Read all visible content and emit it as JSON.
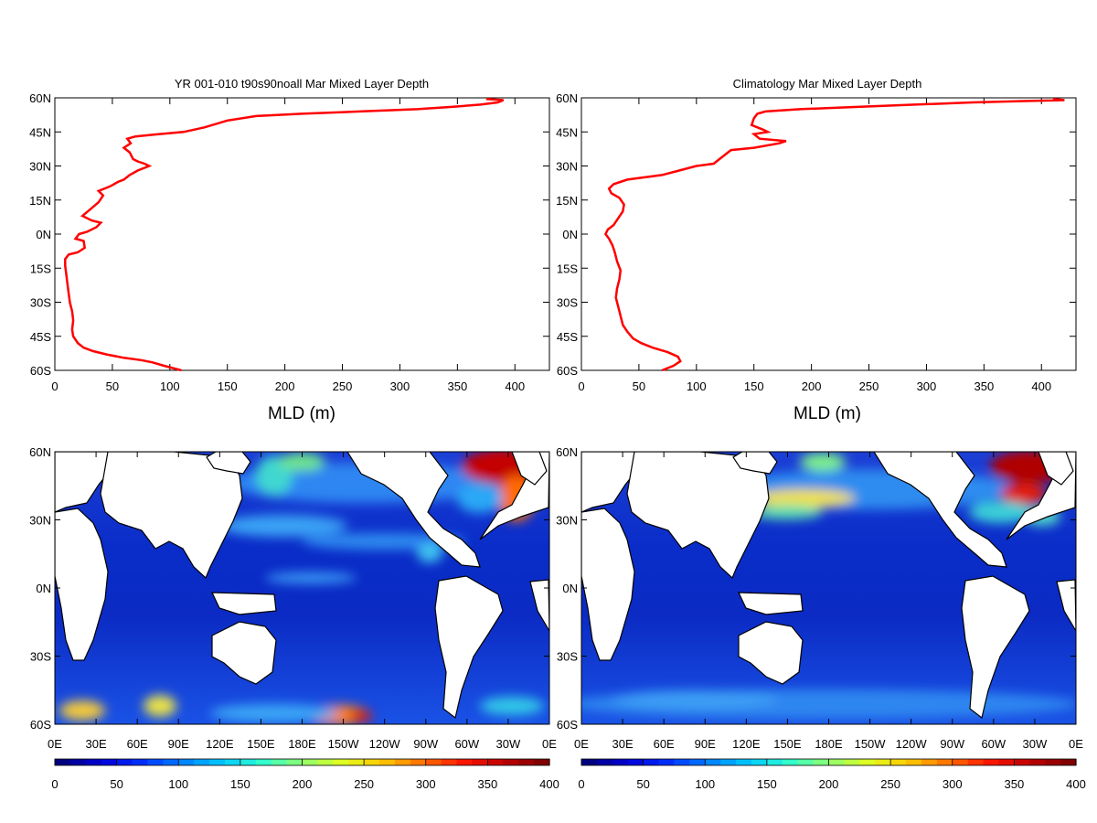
{
  "chart_data": [
    {
      "type": "line",
      "title": "YR 001-010 t90s90noall Mar Mixed Layer Depth",
      "xlabel": "MLD (m)",
      "ylabel": "",
      "xlim": [
        0,
        430
      ],
      "ylim": [
        -60,
        60
      ],
      "x_ticks": [
        "0",
        "50",
        "100",
        "150",
        "200",
        "250",
        "300",
        "350",
        "400"
      ],
      "y_ticks": [
        "60S",
        "45S",
        "30S",
        "15S",
        "0N",
        "15N",
        "30N",
        "45N",
        "60N"
      ],
      "grid": false,
      "series": [
        {
          "color": "#ff0000",
          "points": [
            [
              110,
              -60
            ],
            [
              95,
              -58
            ],
            [
              85,
              -56.5
            ],
            [
              75,
              -55.5
            ],
            [
              60,
              -54.5
            ],
            [
              45,
              -53
            ],
            [
              33,
              -51.5
            ],
            [
              25,
              -50
            ],
            [
              20,
              -48
            ],
            [
              16,
              -45
            ],
            [
              15,
              -42
            ],
            [
              16,
              -38
            ],
            [
              15,
              -34
            ],
            [
              13,
              -30
            ],
            [
              12,
              -26
            ],
            [
              11,
              -22
            ],
            [
              10,
              -18
            ],
            [
              9,
              -14
            ],
            [
              9,
              -11
            ],
            [
              12,
              -9
            ],
            [
              20,
              -8
            ],
            [
              26,
              -6
            ],
            [
              25,
              -3
            ],
            [
              18,
              -2
            ],
            [
              21,
              0
            ],
            [
              28,
              1
            ],
            [
              36,
              3
            ],
            [
              40,
              5
            ],
            [
              32,
              6
            ],
            [
              24,
              8
            ],
            [
              31,
              11
            ],
            [
              38,
              14
            ],
            [
              42,
              17
            ],
            [
              38,
              19
            ],
            [
              48,
              21
            ],
            [
              55,
              23
            ],
            [
              60,
              24
            ],
            [
              65,
              26
            ],
            [
              72,
              28
            ],
            [
              82,
              30
            ],
            [
              78,
              31
            ],
            [
              72,
              32
            ],
            [
              68,
              33
            ],
            [
              65,
              36
            ],
            [
              60,
              38
            ],
            [
              66,
              40
            ],
            [
              63,
              42
            ],
            [
              70,
              43
            ],
            [
              90,
              44
            ],
            [
              112,
              45
            ],
            [
              130,
              47
            ],
            [
              150,
              50
            ],
            [
              175,
              52
            ],
            [
              215,
              53
            ],
            [
              265,
              54
            ],
            [
              315,
              55
            ],
            [
              345,
              56
            ],
            [
              370,
              57
            ],
            [
              385,
              58
            ],
            [
              390,
              59
            ],
            [
              375,
              59.5
            ]
          ]
        }
      ]
    },
    {
      "type": "line",
      "title": "Climatology Mar Mixed Layer Depth",
      "xlabel": "MLD (m)",
      "ylabel": "",
      "xlim": [
        0,
        430
      ],
      "ylim": [
        -60,
        60
      ],
      "x_ticks": [
        "0",
        "50",
        "100",
        "150",
        "200",
        "250",
        "300",
        "350",
        "400"
      ],
      "y_ticks": [
        "60S",
        "45S",
        "30S",
        "15S",
        "0N",
        "15N",
        "30N",
        "45N",
        "60N"
      ],
      "grid": false,
      "series": [
        {
          "color": "#ff0000",
          "points": [
            [
              70,
              -60
            ],
            [
              80,
              -58
            ],
            [
              86,
              -56
            ],
            [
              84,
              -54
            ],
            [
              75,
              -52
            ],
            [
              62,
              -50
            ],
            [
              52,
              -48
            ],
            [
              45,
              -46
            ],
            [
              40,
              -43
            ],
            [
              36,
              -40
            ],
            [
              34,
              -36
            ],
            [
              32,
              -32
            ],
            [
              30,
              -28
            ],
            [
              31,
              -24
            ],
            [
              33,
              -20
            ],
            [
              34,
              -16
            ],
            [
              31,
              -12
            ],
            [
              29,
              -8
            ],
            [
              27,
              -5
            ],
            [
              24,
              -2
            ],
            [
              21,
              0
            ],
            [
              23,
              2
            ],
            [
              28,
              4
            ],
            [
              32,
              7
            ],
            [
              36,
              10
            ],
            [
              37,
              13
            ],
            [
              33,
              16
            ],
            [
              26,
              18
            ],
            [
              24,
              20
            ],
            [
              28,
              22
            ],
            [
              40,
              24
            ],
            [
              55,
              25
            ],
            [
              70,
              26
            ],
            [
              85,
              28
            ],
            [
              100,
              30
            ],
            [
              115,
              31
            ],
            [
              120,
              33
            ],
            [
              130,
              37
            ],
            [
              150,
              38
            ],
            [
              172,
              40
            ],
            [
              178,
              41
            ],
            [
              155,
              42
            ],
            [
              150,
              44
            ],
            [
              162,
              45
            ],
            [
              158,
              46
            ],
            [
              148,
              48
            ],
            [
              150,
              51
            ],
            [
              153,
              53
            ],
            [
              160,
              54
            ],
            [
              190,
              55
            ],
            [
              240,
              56
            ],
            [
              290,
              57
            ],
            [
              340,
              58
            ],
            [
              385,
              58.6
            ],
            [
              420,
              59
            ],
            [
              410,
              59.5
            ]
          ]
        }
      ]
    },
    {
      "type": "heatmap",
      "title": "",
      "x_ticks": [
        "0E",
        "30E",
        "60E",
        "90E",
        "120E",
        "150E",
        "180E",
        "150W",
        "120W",
        "90W",
        "60W",
        "30W",
        "0E"
      ],
      "y_ticks": [
        "60S",
        "30S",
        "0N",
        "30N",
        "60N"
      ],
      "colorbar_ticks": [
        "0",
        "50",
        "100",
        "150",
        "200",
        "250",
        "300",
        "350",
        "400"
      ],
      "colorbar_range": [
        0,
        400
      ],
      "colorscale": "jet",
      "variable": "Mar Mixed Layer Depth"
    },
    {
      "type": "heatmap",
      "title": "",
      "x_ticks": [
        "0E",
        "30E",
        "60E",
        "90E",
        "120E",
        "150E",
        "180E",
        "150W",
        "120W",
        "90W",
        "60W",
        "30W",
        "0E"
      ],
      "y_ticks": [
        "60S",
        "30S",
        "0N",
        "30N",
        "60N"
      ],
      "colorbar_ticks": [
        "0",
        "50",
        "100",
        "150",
        "200",
        "250",
        "300",
        "350",
        "400"
      ],
      "colorbar_range": [
        0,
        400
      ],
      "colorscale": "jet",
      "variable": "Mar Mixed Layer Depth"
    }
  ]
}
